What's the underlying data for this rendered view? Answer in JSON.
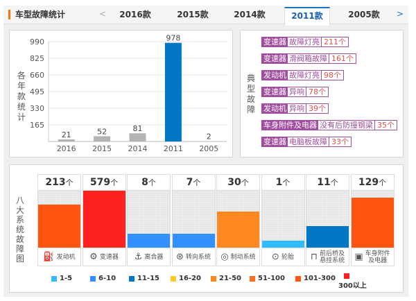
{
  "header": {
    "title": "车型故障统计",
    "prev_arrow": "<",
    "next_arrow": ">",
    "tabs": [
      {
        "label": "2016款",
        "active": false
      },
      {
        "label": "2015款",
        "active": false
      },
      {
        "label": "2014款",
        "active": false
      },
      {
        "label": "2011款",
        "active": true
      },
      {
        "label": "2005款",
        "active": false
      }
    ],
    "accent_color": "#1a73c8"
  },
  "year_chart": {
    "ylabel": "各年款统计"
  },
  "typical_faults": {
    "label": "典型故障",
    "items": [
      {
        "system": "变速器",
        "desc": "故障灯亮",
        "count": "211个"
      },
      {
        "system": "变速器",
        "desc": "滑阀箱故障",
        "count": "161个"
      },
      {
        "system": "发动机",
        "desc": "故障灯亮",
        "count": "98个"
      },
      {
        "system": "变速器",
        "desc": "异响",
        "count": "78个"
      },
      {
        "system": "发动机",
        "desc": "异响",
        "count": "39个"
      },
      {
        "system": "车身附件及电器",
        "desc": "没有后防撞钢梁",
        "count": "35个"
      },
      {
        "system": "变速器",
        "desc": "电脑板故障",
        "count": "33个"
      }
    ]
  },
  "eight_systems": {
    "label": "八大系统故障图",
    "unit": "个",
    "systems": [
      {
        "name": "发动机",
        "icon": "engine-icon",
        "glyph": "⛽",
        "count": 213,
        "level": 0.76,
        "color": "#ff5511"
      },
      {
        "name": "变速器",
        "icon": "gearshift-icon",
        "glyph": "⚙",
        "count": 579,
        "level": 1.0,
        "color": "#ff2020"
      },
      {
        "name": "离合器",
        "icon": "clutch-icon",
        "glyph": "⚓",
        "count": 8,
        "level": 0.25,
        "color": "#3391ff"
      },
      {
        "name": "转向系统",
        "icon": "steering-wheel-icon",
        "glyph": "⊛",
        "count": 7,
        "level": 0.25,
        "color": "#3391ff"
      },
      {
        "name": "制动系统",
        "icon": "brake-disc-icon",
        "glyph": "◎",
        "count": 30,
        "level": 0.63,
        "color": "#ff8822"
      },
      {
        "name": "轮胎",
        "icon": "tire-icon",
        "glyph": "⊙",
        "count": 1,
        "level": 0.12,
        "color": "#33bbff"
      },
      {
        "name": "前后桥及悬挂系统",
        "icon": "axle-icon",
        "glyph": "⊓",
        "count": 11,
        "level": 0.38,
        "color": "#0077c2"
      },
      {
        "name": "车身附件及电器",
        "icon": "battery-icon",
        "glyph": "▣",
        "count": 129,
        "level": 0.88,
        "color": "#ff5511"
      }
    ],
    "legend": [
      {
        "label": "1-5",
        "color": "#33bbff"
      },
      {
        "label": "6-10",
        "color": "#3391ff"
      },
      {
        "label": "11-15",
        "color": "#0077c2"
      },
      {
        "label": "16-20",
        "color": "#ffc825"
      },
      {
        "label": "21-50",
        "color": "#ff8822"
      },
      {
        "label": "51-100",
        "color": "#ff6f22"
      },
      {
        "label": "101-300",
        "color": "#ff5511"
      },
      {
        "label": "300以上",
        "color": "#ff2020"
      }
    ]
  },
  "chart_data": {
    "type": "bar",
    "title": "",
    "xlabel": "",
    "ylabel": "各年款统计",
    "categories": [
      "2016",
      "2015",
      "2014",
      "2011",
      "2005"
    ],
    "values": [
      21,
      52,
      81,
      978,
      2
    ],
    "highlight": "2011",
    "yticks": [
      165,
      330,
      495,
      660,
      825,
      990
    ],
    "ylim": [
      0,
      990
    ],
    "grid": true,
    "bar_color": "#b3b3b3",
    "highlight_color": "#0077c2"
  }
}
